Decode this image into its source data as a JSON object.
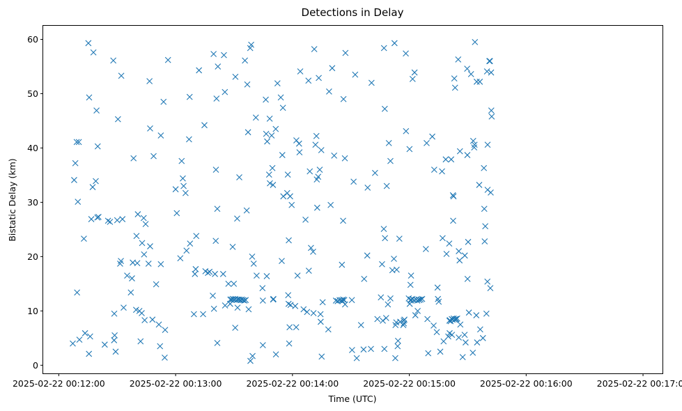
{
  "chart_data": {
    "type": "scatter",
    "title": "Detections in Delay",
    "xlabel": "Time (UTC)",
    "ylabel": "Bistatic Delay (km)",
    "marker": "x",
    "color": "#1f77b4",
    "x_unit": "seconds after 2025-02-22 00:11:00",
    "xlim": [
      52,
      370
    ],
    "ylim": [
      -1.5,
      62.5
    ],
    "x_ticks": [
      {
        "value": 60,
        "label": "2025-02-22 00:12:00"
      },
      {
        "value": 120,
        "label": "2025-02-22 00:13:00"
      },
      {
        "value": 180,
        "label": "2025-02-22 00:14:00"
      },
      {
        "value": 240,
        "label": "2025-02-22 00:15:00"
      },
      {
        "value": 300,
        "label": "2025-02-22 00:16:00"
      },
      {
        "value": 360,
        "label": "2025-02-22 00:17:00"
      }
    ],
    "y_ticks": [
      {
        "value": 0,
        "label": "0"
      },
      {
        "value": 10,
        "label": "10"
      },
      {
        "value": 20,
        "label": "20"
      },
      {
        "value": 30,
        "label": "30"
      },
      {
        "value": 40,
        "label": "40"
      },
      {
        "value": 50,
        "label": "50"
      },
      {
        "value": 60,
        "label": "60"
      }
    ],
    "points": [
      [
        67.2,
        4.0
      ],
      [
        67.9,
        34.1
      ],
      [
        68.5,
        37.2
      ],
      [
        69.2,
        41.1
      ],
      [
        69.4,
        13.4
      ],
      [
        69.8,
        30.1
      ],
      [
        70.3,
        41.1
      ],
      [
        70.6,
        4.7
      ],
      [
        72.9,
        23.3
      ],
      [
        73.5,
        5.9
      ],
      [
        75.2,
        59.3
      ],
      [
        75.5,
        2.1
      ],
      [
        75.6,
        49.3
      ],
      [
        76.1,
        5.3
      ],
      [
        76.7,
        26.9
      ],
      [
        77.4,
        32.8
      ],
      [
        77.8,
        57.6
      ],
      [
        79.0,
        33.9
      ],
      [
        79.4,
        46.9
      ],
      [
        79.8,
        27.2
      ],
      [
        80.0,
        40.3
      ],
      [
        80.4,
        27.3
      ],
      [
        83.6,
        3.8
      ],
      [
        85.3,
        26.6
      ],
      [
        86.3,
        26.4
      ],
      [
        88.0,
        56.1
      ],
      [
        88.4,
        4.6
      ],
      [
        88.5,
        9.5
      ],
      [
        88.7,
        5.5
      ],
      [
        89.2,
        2.5
      ],
      [
        90.0,
        26.7
      ],
      [
        90.4,
        45.3
      ],
      [
        91.5,
        18.7
      ],
      [
        91.9,
        19.2
      ],
      [
        92.1,
        53.3
      ],
      [
        92.7,
        26.9
      ],
      [
        93.3,
        10.6
      ],
      [
        95.1,
        16.5
      ],
      [
        97.0,
        13.4
      ],
      [
        97.6,
        16.0
      ],
      [
        98.0,
        18.9
      ],
      [
        98.4,
        38.1
      ],
      [
        99.7,
        10.2
      ],
      [
        99.9,
        23.8
      ],
      [
        100.3,
        18.8
      ],
      [
        100.6,
        27.8
      ],
      [
        101.4,
        10.0
      ],
      [
        102.0,
        4.4
      ],
      [
        102.6,
        9.6
      ],
      [
        102.8,
        22.5
      ],
      [
        103.6,
        27.1
      ],
      [
        103.8,
        20.4
      ],
      [
        104.1,
        8.3
      ],
      [
        104.6,
        26.0
      ],
      [
        106.1,
        18.7
      ],
      [
        106.6,
        52.3
      ],
      [
        106.9,
        43.6
      ],
      [
        106.9,
        21.9
      ],
      [
        108.1,
        8.4
      ],
      [
        108.7,
        38.5
      ],
      [
        110.0,
        14.9
      ],
      [
        111.4,
        7.5
      ],
      [
        112.0,
        3.5
      ],
      [
        112.4,
        42.3
      ],
      [
        112.4,
        18.6
      ],
      [
        113.8,
        48.5
      ],
      [
        114.4,
        1.4
      ],
      [
        114.6,
        6.5
      ],
      [
        116.1,
        56.2
      ],
      [
        120.0,
        32.4
      ],
      [
        120.6,
        28.0
      ],
      [
        122.4,
        19.7
      ],
      [
        123.1,
        37.6
      ],
      [
        123.7,
        34.4
      ],
      [
        124.1,
        33.0
      ],
      [
        125.1,
        31.7
      ],
      [
        125.6,
        21.1
      ],
      [
        126.9,
        41.6
      ],
      [
        127.2,
        49.4
      ],
      [
        127.4,
        22.4
      ],
      [
        129.4,
        9.4
      ],
      [
        129.9,
        16.8
      ],
      [
        130.3,
        17.7
      ],
      [
        130.6,
        23.8
      ],
      [
        132.0,
        54.3
      ],
      [
        134.1,
        9.4
      ],
      [
        134.8,
        44.2
      ],
      [
        135.3,
        17.3
      ],
      [
        136.6,
        17.0
      ],
      [
        137.4,
        17.2
      ],
      [
        139.1,
        12.8
      ],
      [
        139.5,
        57.3
      ],
      [
        139.7,
        10.4
      ],
      [
        140.2,
        16.8
      ],
      [
        140.6,
        22.9
      ],
      [
        140.7,
        36.0
      ],
      [
        141.0,
        49.1
      ],
      [
        141.4,
        28.8
      ],
      [
        141.4,
        4.1
      ],
      [
        141.7,
        55.0
      ],
      [
        144.4,
        16.8
      ],
      [
        144.8,
        57.1
      ],
      [
        145.3,
        50.3
      ],
      [
        145.4,
        11.0
      ],
      [
        147.1,
        15.0
      ],
      [
        148.0,
        11.3
      ],
      [
        148.1,
        12.1
      ],
      [
        148.7,
        12.1
      ],
      [
        149.3,
        21.8
      ],
      [
        149.4,
        12.2
      ],
      [
        149.9,
        15.0
      ],
      [
        150.0,
        12.1
      ],
      [
        150.6,
        6.9
      ],
      [
        150.7,
        12.2
      ],
      [
        150.7,
        53.1
      ],
      [
        151.3,
        12.0
      ],
      [
        151.6,
        27.0
      ],
      [
        151.8,
        10.6
      ],
      [
        152.0,
        12.1
      ],
      [
        152.7,
        12.1
      ],
      [
        152.7,
        34.6
      ],
      [
        153.3,
        12.0
      ],
      [
        154.0,
        12.1
      ],
      [
        154.7,
        12.0
      ],
      [
        155.3,
        11.9
      ],
      [
        155.6,
        56.1
      ],
      [
        156.0,
        12.0
      ],
      [
        156.5,
        28.5
      ],
      [
        156.8,
        51.7
      ],
      [
        157.2,
        42.9
      ],
      [
        157.5,
        10.3
      ],
      [
        158.3,
        58.4
      ],
      [
        158.4,
        0.8
      ],
      [
        158.8,
        59.0
      ],
      [
        159.3,
        20.0
      ],
      [
        159.5,
        1.7
      ],
      [
        160.1,
        18.7
      ],
      [
        161.2,
        45.6
      ],
      [
        161.6,
        16.5
      ],
      [
        164.6,
        14.2
      ],
      [
        164.8,
        3.7
      ],
      [
        164.8,
        11.9
      ],
      [
        166.3,
        48.9
      ],
      [
        166.5,
        42.6
      ],
      [
        166.8,
        16.4
      ],
      [
        167.0,
        41.2
      ],
      [
        168.0,
        35.1
      ],
      [
        168.3,
        45.4
      ],
      [
        168.4,
        33.5
      ],
      [
        169.3,
        42.3
      ],
      [
        169.7,
        36.3
      ],
      [
        170.0,
        33.2
      ],
      [
        170.1,
        12.1
      ],
      [
        170.2,
        12.2
      ],
      [
        171.4,
        43.5
      ],
      [
        171.5,
        2.0
      ],
      [
        172.3,
        51.9
      ],
      [
        174.0,
        49.3
      ],
      [
        174.5,
        19.2
      ],
      [
        174.8,
        38.7
      ],
      [
        175.1,
        47.4
      ],
      [
        175.3,
        31.1
      ],
      [
        177.3,
        31.7
      ],
      [
        177.6,
        35.1
      ],
      [
        177.8,
        12.9
      ],
      [
        178.0,
        11.3
      ],
      [
        178.1,
        23.0
      ],
      [
        178.3,
        4.0
      ],
      [
        178.5,
        7.0
      ],
      [
        178.8,
        31.1
      ],
      [
        179.0,
        11.1
      ],
      [
        179.6,
        29.5
      ],
      [
        181.4,
        10.9
      ],
      [
        181.9,
        7.0
      ],
      [
        182.0,
        41.4
      ],
      [
        182.6,
        16.5
      ],
      [
        183.4,
        40.8
      ],
      [
        183.6,
        39.2
      ],
      [
        184.0,
        54.1
      ],
      [
        185.7,
        10.3
      ],
      [
        186.7,
        26.8
      ],
      [
        187.5,
        9.8
      ],
      [
        188.2,
        52.4
      ],
      [
        188.4,
        17.4
      ],
      [
        188.9,
        35.7
      ],
      [
        189.5,
        21.6
      ],
      [
        190.6,
        20.9
      ],
      [
        190.8,
        9.6
      ],
      [
        191.2,
        58.2
      ],
      [
        191.8,
        40.6
      ],
      [
        192.3,
        42.2
      ],
      [
        192.5,
        34.2
      ],
      [
        192.7,
        29.0
      ],
      [
        193.2,
        34.7
      ],
      [
        193.5,
        52.9
      ],
      [
        194.0,
        36.0
      ],
      [
        194.4,
        9.4
      ],
      [
        194.5,
        8.0
      ],
      [
        194.8,
        39.6
      ],
      [
        195.0,
        1.6
      ],
      [
        195.5,
        11.6
      ],
      [
        198.4,
        6.6
      ],
      [
        198.8,
        50.4
      ],
      [
        199.6,
        29.5
      ],
      [
        200.4,
        54.7
      ],
      [
        201.4,
        38.6
      ],
      [
        202.3,
        11.9
      ],
      [
        203.2,
        11.8
      ],
      [
        204.2,
        12.0
      ],
      [
        205.2,
        12.0
      ],
      [
        205.4,
        18.5
      ],
      [
        205.6,
        11.8
      ],
      [
        206.0,
        12.1
      ],
      [
        206.0,
        26.6
      ],
      [
        206.2,
        49.0
      ],
      [
        206.6,
        12.0
      ],
      [
        206.9,
        38.1
      ],
      [
        207.0,
        11.2
      ],
      [
        207.2,
        57.5
      ],
      [
        210.5,
        12.0
      ],
      [
        210.6,
        2.8
      ],
      [
        211.4,
        33.8
      ],
      [
        212.2,
        53.5
      ],
      [
        213.0,
        1.3
      ],
      [
        215.2,
        7.4
      ],
      [
        216.5,
        2.9
      ],
      [
        216.8,
        15.9
      ],
      [
        218.4,
        20.2
      ],
      [
        218.6,
        32.7
      ],
      [
        220.3,
        3.0
      ],
      [
        220.6,
        52.0
      ],
      [
        222.4,
        35.4
      ],
      [
        223.6,
        8.5
      ],
      [
        225.4,
        12.5
      ],
      [
        226.0,
        18.6
      ],
      [
        226.4,
        8.2
      ],
      [
        226.9,
        25.1
      ],
      [
        227.0,
        58.4
      ],
      [
        227.2,
        3.0
      ],
      [
        227.4,
        47.2
      ],
      [
        227.5,
        23.4
      ],
      [
        228.1,
        8.7
      ],
      [
        228.4,
        33.0
      ],
      [
        229.0,
        11.2
      ],
      [
        229.5,
        40.9
      ],
      [
        230.3,
        12.3
      ],
      [
        230.3,
        37.6
      ],
      [
        231.3,
        17.5
      ],
      [
        232.1,
        19.6
      ],
      [
        232.4,
        59.3
      ],
      [
        232.8,
        1.3
      ],
      [
        232.9,
        7.4
      ],
      [
        233.3,
        7.9
      ],
      [
        233.5,
        17.6
      ],
      [
        234.0,
        3.5
      ],
      [
        234.2,
        4.5
      ],
      [
        234.9,
        23.3
      ],
      [
        235.3,
        8.0
      ],
      [
        236.9,
        7.4
      ],
      [
        237.1,
        8.2
      ],
      [
        237.2,
        7.7
      ],
      [
        237.5,
        8.4
      ],
      [
        238.2,
        57.4
      ],
      [
        238.3,
        43.1
      ],
      [
        239.7,
        12.3
      ],
      [
        240.1,
        39.8
      ],
      [
        240.2,
        11.3
      ],
      [
        240.6,
        14.8
      ],
      [
        240.7,
        11.9
      ],
      [
        240.8,
        12.1
      ],
      [
        240.9,
        16.5
      ],
      [
        241.6,
        12.2
      ],
      [
        241.7,
        52.7
      ],
      [
        242.4,
        12.0
      ],
      [
        242.7,
        53.9
      ],
      [
        243.1,
        9.2
      ],
      [
        243.5,
        12.1
      ],
      [
        244.1,
        11.9
      ],
      [
        244.3,
        10.0
      ],
      [
        244.8,
        12.1
      ],
      [
        245.1,
        12.0
      ],
      [
        245.8,
        12.1
      ],
      [
        246.6,
        12.2
      ],
      [
        248.5,
        21.4
      ],
      [
        248.9,
        40.9
      ],
      [
        249.3,
        8.5
      ],
      [
        249.7,
        2.2
      ],
      [
        251.8,
        42.1
      ],
      [
        252.5,
        7.3
      ],
      [
        252.8,
        36.0
      ],
      [
        254.1,
        6.1
      ],
      [
        254.5,
        14.3
      ],
      [
        254.7,
        12.2
      ],
      [
        255.1,
        11.7
      ],
      [
        255.9,
        2.5
      ],
      [
        256.8,
        35.7
      ],
      [
        257.1,
        23.4
      ],
      [
        257.6,
        4.4
      ],
      [
        258.7,
        37.9
      ],
      [
        259.1,
        20.5
      ],
      [
        260.0,
        5.3
      ],
      [
        260.5,
        22.4
      ],
      [
        260.6,
        8.2
      ],
      [
        260.7,
        5.9
      ],
      [
        260.8,
        8.3
      ],
      [
        261.2,
        8.1
      ],
      [
        261.5,
        37.9
      ],
      [
        261.8,
        8.5
      ],
      [
        261.9,
        5.6
      ],
      [
        262.2,
        8.4
      ],
      [
        262.4,
        31.3
      ],
      [
        262.5,
        26.6
      ],
      [
        262.7,
        31.1
      ],
      [
        262.8,
        8.6
      ],
      [
        263.1,
        52.8
      ],
      [
        263.3,
        8.4
      ],
      [
        263.5,
        51.1
      ],
      [
        263.8,
        8.5
      ],
      [
        264.1,
        8.5
      ],
      [
        264.6,
        8.6
      ],
      [
        265.1,
        56.3
      ],
      [
        265.4,
        21.0
      ],
      [
        265.4,
        5.1
      ],
      [
        265.8,
        19.3
      ],
      [
        266.0,
        39.4
      ],
      [
        266.2,
        7.5
      ],
      [
        267.4,
        1.5
      ],
      [
        268.4,
        5.6
      ],
      [
        268.5,
        20.2
      ],
      [
        268.9,
        4.2
      ],
      [
        269.7,
        54.6
      ],
      [
        269.8,
        38.7
      ],
      [
        269.9,
        15.9
      ],
      [
        270.2,
        22.7
      ],
      [
        270.6,
        9.7
      ],
      [
        271.7,
        53.6
      ],
      [
        272.6,
        2.3
      ],
      [
        272.8,
        41.3
      ],
      [
        273.3,
        40.1
      ],
      [
        273.5,
        40.6
      ],
      [
        273.7,
        59.5
      ],
      [
        274.4,
        9.2
      ],
      [
        274.6,
        52.2
      ],
      [
        274.8,
        4.2
      ],
      [
        275.9,
        33.2
      ],
      [
        276.2,
        52.2
      ],
      [
        276.4,
        6.6
      ],
      [
        277.8,
        5.0
      ],
      [
        278.3,
        36.3
      ],
      [
        278.5,
        28.8
      ],
      [
        278.7,
        22.8
      ],
      [
        279.0,
        25.6
      ],
      [
        279.6,
        9.5
      ],
      [
        279.9,
        54.1
      ],
      [
        280.1,
        15.4
      ],
      [
        280.2,
        32.3
      ],
      [
        280.2,
        40.6
      ],
      [
        281.1,
        56.0
      ],
      [
        281.4,
        56.0
      ],
      [
        281.6,
        14.2
      ],
      [
        281.8,
        31.8
      ],
      [
        282.0,
        53.9
      ],
      [
        282.1,
        46.9
      ],
      [
        282.3,
        45.8
      ]
    ]
  }
}
